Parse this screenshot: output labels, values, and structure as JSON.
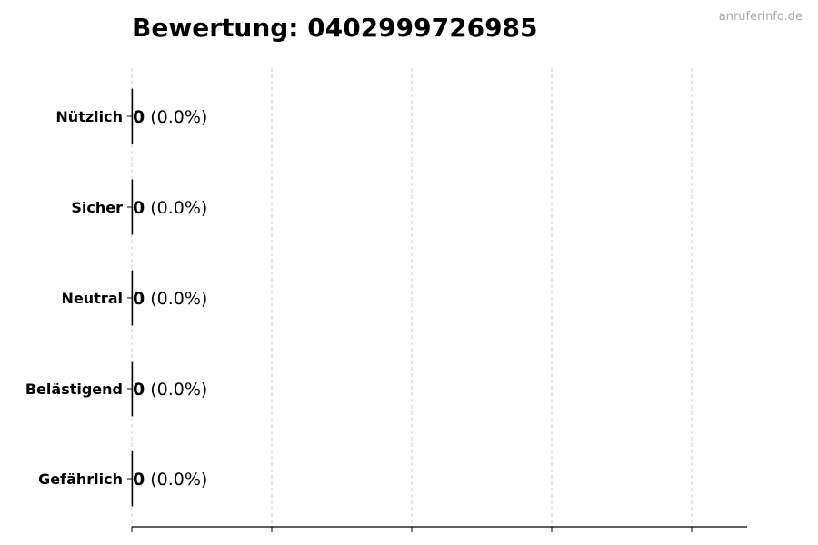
{
  "chart_data": {
    "type": "bar",
    "orientation": "horizontal",
    "title": "Bewertung: 0402999726985",
    "watermark": "anruferinfo.de",
    "categories": [
      "Nützlich",
      "Sicher",
      "Neutral",
      "Belästigend",
      "Gefährlich"
    ],
    "values": [
      0,
      0,
      0,
      0,
      0
    ],
    "percentages": [
      "0.0%",
      "0.0%",
      "0.0%",
      "0.0%",
      "0.0%"
    ],
    "data_labels": [
      {
        "value": "0",
        "percent": "(0.0%)"
      },
      {
        "value": "0",
        "percent": "(0.0%)"
      },
      {
        "value": "0",
        "percent": "(0.0%)"
      },
      {
        "value": "0",
        "percent": "(0.0%)"
      },
      {
        "value": "0",
        "percent": "(0.0%)"
      }
    ],
    "x_tick_labels_shown": false,
    "grid": "vertical dashed",
    "colors": {
      "bar_edge": "#000000",
      "grid": "#cccccc",
      "watermark": "#aaaaaa"
    }
  }
}
